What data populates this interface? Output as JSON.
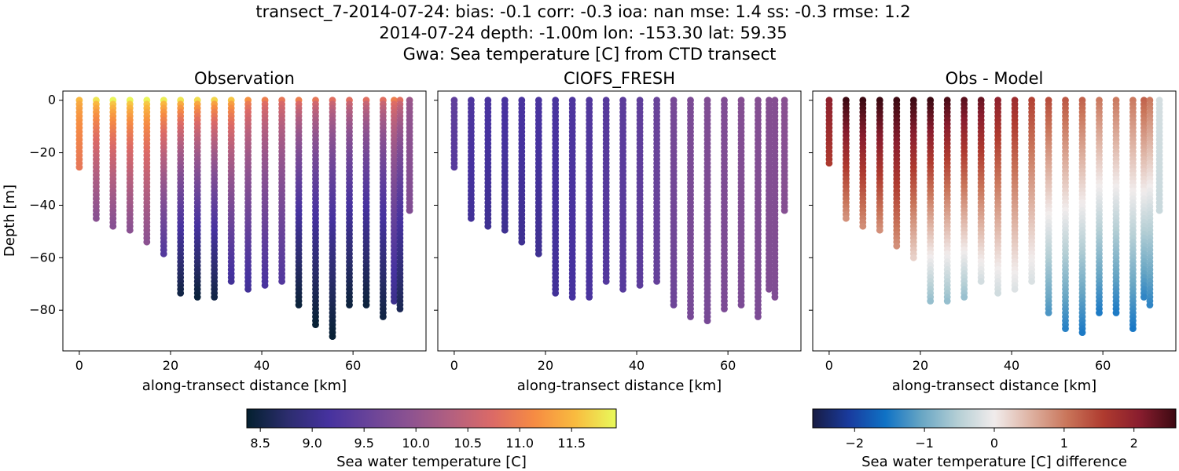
{
  "figure": {
    "title_lines": [
      "transect_7-2014-07-24: bias: -0.1  corr: -0.3  ioa: nan  mse: 1.4  ss: -0.3  rmse: 1.2",
      "2014-07-24 depth: -1.00m lon: -153.30 lat: 59.35",
      "Gwa: Sea temperature [C] from CTD transect"
    ]
  },
  "chart_data": [
    {
      "type": "scatter",
      "title": "Observation",
      "xlabel": "along-transect distance [km]",
      "ylabel": "Depth [m]",
      "xlim": [
        -3.6,
        76
      ],
      "ylim": [
        -95.5,
        3.5
      ],
      "xticks": [
        0,
        20,
        40,
        60
      ],
      "yticks": [
        0,
        -20,
        -40,
        -60,
        -80
      ],
      "colormap": "thermal",
      "stations": [
        {
          "x": 0.0,
          "depth_min": -26,
          "upper_temp": 11.5,
          "lower_temp": 10.9
        },
        {
          "x": 3.7,
          "depth_min": -45,
          "upper_temp": 11.8,
          "lower_temp": 9.9
        },
        {
          "x": 7.4,
          "depth_min": -49,
          "upper_temp": 11.9,
          "lower_temp": 9.85
        },
        {
          "x": 11.1,
          "depth_min": -50,
          "upper_temp": 11.9,
          "lower_temp": 9.9
        },
        {
          "x": 14.8,
          "depth_min": -55,
          "upper_temp": 11.9,
          "lower_temp": 9.9
        },
        {
          "x": 18.5,
          "depth_min": -59,
          "upper_temp": 11.85,
          "lower_temp": 9.3
        },
        {
          "x": 22.2,
          "depth_min": -74,
          "upper_temp": 11.8,
          "lower_temp": 8.5
        },
        {
          "x": 25.9,
          "depth_min": -75,
          "upper_temp": 11.75,
          "lower_temp": 8.45
        },
        {
          "x": 29.6,
          "depth_min": -76,
          "upper_temp": 11.7,
          "lower_temp": 8.5
        },
        {
          "x": 33.3,
          "depth_min": -69,
          "upper_temp": 11.6,
          "lower_temp": 9.1
        },
        {
          "x": 37.0,
          "depth_min": -72,
          "upper_temp": 11.2,
          "lower_temp": 9.1
        },
        {
          "x": 40.7,
          "depth_min": -71,
          "upper_temp": 11.0,
          "lower_temp": 9.2
        },
        {
          "x": 44.4,
          "depth_min": -69,
          "upper_temp": 10.9,
          "lower_temp": 9.3
        },
        {
          "x": 48.1,
          "depth_min": -78,
          "upper_temp": 11.0,
          "lower_temp": 8.45
        },
        {
          "x": 51.8,
          "depth_min": -86,
          "upper_temp": 10.9,
          "lower_temp": 8.4
        },
        {
          "x": 55.5,
          "depth_min": -91,
          "upper_temp": 10.8,
          "lower_temp": 8.4
        },
        {
          "x": 59.2,
          "depth_min": -79,
          "upper_temp": 10.8,
          "lower_temp": 8.45
        },
        {
          "x": 62.9,
          "depth_min": -79,
          "upper_temp": 10.8,
          "lower_temp": 8.45
        },
        {
          "x": 66.6,
          "depth_min": -83,
          "upper_temp": 10.8,
          "lower_temp": 8.5
        },
        {
          "x": 69.0,
          "depth_min": -77,
          "upper_temp": 11.0,
          "lower_temp": 9.0
        },
        {
          "x": 70.3,
          "depth_min": -80,
          "upper_temp": 10.8,
          "lower_temp": 8.6
        },
        {
          "x": 72.4,
          "depth_min": -43,
          "upper_temp": 10.1,
          "lower_temp": 9.8
        }
      ]
    },
    {
      "type": "scatter",
      "title": "CIOFS_FRESH",
      "xlabel": "along-transect distance [km]",
      "xlim": [
        -3.6,
        76
      ],
      "ylim": [
        -95.5,
        3.5
      ],
      "xticks": [
        0,
        20,
        40,
        60
      ],
      "colormap": "thermal",
      "stations": [
        {
          "x": 0.0,
          "depth_min": -26,
          "upper_temp": 9.45,
          "lower_temp": 9.35
        },
        {
          "x": 3.7,
          "depth_min": -45,
          "upper_temp": 9.25,
          "lower_temp": 9.1
        },
        {
          "x": 7.4,
          "depth_min": -49,
          "upper_temp": 9.2,
          "lower_temp": 9.05
        },
        {
          "x": 11.1,
          "depth_min": -50,
          "upper_temp": 9.2,
          "lower_temp": 9.05
        },
        {
          "x": 14.8,
          "depth_min": -55,
          "upper_temp": 9.2,
          "lower_temp": 9.05
        },
        {
          "x": 18.5,
          "depth_min": -59,
          "upper_temp": 9.2,
          "lower_temp": 9.05
        },
        {
          "x": 22.2,
          "depth_min": -74,
          "upper_temp": 9.2,
          "lower_temp": 9.1
        },
        {
          "x": 25.9,
          "depth_min": -75,
          "upper_temp": 9.25,
          "lower_temp": 9.15
        },
        {
          "x": 29.6,
          "depth_min": -76,
          "upper_temp": 9.3,
          "lower_temp": 9.2
        },
        {
          "x": 33.3,
          "depth_min": -69,
          "upper_temp": 9.35,
          "lower_temp": 9.3
        },
        {
          "x": 37.0,
          "depth_min": -72,
          "upper_temp": 9.4,
          "lower_temp": 9.35
        },
        {
          "x": 40.7,
          "depth_min": -71,
          "upper_temp": 9.45,
          "lower_temp": 9.4
        },
        {
          "x": 44.4,
          "depth_min": -69,
          "upper_temp": 9.55,
          "lower_temp": 9.5
        },
        {
          "x": 48.1,
          "depth_min": -78,
          "upper_temp": 9.7,
          "lower_temp": 9.6
        },
        {
          "x": 51.8,
          "depth_min": -83,
          "upper_temp": 9.75,
          "lower_temp": 9.7
        },
        {
          "x": 55.5,
          "depth_min": -85,
          "upper_temp": 9.8,
          "lower_temp": 9.7
        },
        {
          "x": 59.2,
          "depth_min": -80,
          "upper_temp": 9.8,
          "lower_temp": 9.75
        },
        {
          "x": 62.9,
          "depth_min": -79,
          "upper_temp": 9.85,
          "lower_temp": 9.75
        },
        {
          "x": 66.6,
          "depth_min": -83,
          "upper_temp": 9.85,
          "lower_temp": 9.75
        },
        {
          "x": 69.0,
          "depth_min": -73,
          "upper_temp": 9.85,
          "lower_temp": 9.8
        },
        {
          "x": 70.3,
          "depth_min": -76,
          "upper_temp": 9.85,
          "lower_temp": 9.8
        },
        {
          "x": 72.4,
          "depth_min": -43,
          "upper_temp": 9.9,
          "lower_temp": 9.85
        }
      ]
    },
    {
      "type": "scatter",
      "title": "Obs - Model",
      "xlabel": "along-transect distance [km]",
      "xlim": [
        -3.6,
        76
      ],
      "ylim": [
        -95.5,
        3.5
      ],
      "xticks": [
        0,
        20,
        40,
        60
      ],
      "colormap": "balance",
      "stations": [
        {
          "x": 0.0,
          "depth_min": -24,
          "upper_diff": 2.0,
          "lower_diff": 1.6
        },
        {
          "x": 3.7,
          "depth_min": -45,
          "upper_diff": 2.6,
          "lower_diff": 0.8
        },
        {
          "x": 7.4,
          "depth_min": -49,
          "upper_diff": 2.6,
          "lower_diff": 0.8
        },
        {
          "x": 11.1,
          "depth_min": -50,
          "upper_diff": 2.6,
          "lower_diff": 0.8
        },
        {
          "x": 14.8,
          "depth_min": -56,
          "upper_diff": 2.6,
          "lower_diff": 0.8
        },
        {
          "x": 18.5,
          "depth_min": -60,
          "upper_diff": 2.6,
          "lower_diff": 0.25
        },
        {
          "x": 22.2,
          "depth_min": -77,
          "upper_diff": 2.6,
          "lower_diff": -0.75
        },
        {
          "x": 25.9,
          "depth_min": -77,
          "upper_diff": 2.5,
          "lower_diff": -0.75
        },
        {
          "x": 29.6,
          "depth_min": -76,
          "upper_diff": 2.4,
          "lower_diff": -0.75
        },
        {
          "x": 33.3,
          "depth_min": -70,
          "upper_diff": 2.3,
          "lower_diff": -0.3
        },
        {
          "x": 37.0,
          "depth_min": -74,
          "upper_diff": 2.0,
          "lower_diff": -0.3
        },
        {
          "x": 40.7,
          "depth_min": -73,
          "upper_diff": 1.8,
          "lower_diff": -0.2
        },
        {
          "x": 44.4,
          "depth_min": -69,
          "upper_diff": 1.5,
          "lower_diff": -0.2
        },
        {
          "x": 48.1,
          "depth_min": -81,
          "upper_diff": 1.4,
          "lower_diff": -1.2
        },
        {
          "x": 51.8,
          "depth_min": -87,
          "upper_diff": 1.3,
          "lower_diff": -1.4
        },
        {
          "x": 55.5,
          "depth_min": -89,
          "upper_diff": 1.2,
          "lower_diff": -1.5
        },
        {
          "x": 59.2,
          "depth_min": -82,
          "upper_diff": 1.0,
          "lower_diff": -1.5
        },
        {
          "x": 62.9,
          "depth_min": -82,
          "upper_diff": 1.0,
          "lower_diff": -1.5
        },
        {
          "x": 66.6,
          "depth_min": -87,
          "upper_diff": 1.0,
          "lower_diff": -1.5
        },
        {
          "x": 69.0,
          "depth_min": -76,
          "upper_diff": 1.2,
          "lower_diff": -1.4
        },
        {
          "x": 70.3,
          "depth_min": -79,
          "upper_diff": 1.0,
          "lower_diff": -1.4
        },
        {
          "x": 72.4,
          "depth_min": -43,
          "upper_diff": -0.25,
          "lower_diff": -0.35
        }
      ]
    }
  ],
  "colorbars": [
    {
      "label": "Sea water temperature [C]",
      "range": [
        8.37,
        11.93
      ],
      "ticks": [
        "8.5",
        "9.0",
        "9.5",
        "10.0",
        "10.5",
        "11.0",
        "11.5"
      ],
      "colormap": "thermal"
    },
    {
      "label": "Sea water temperature [C] difference",
      "range": [
        -2.6,
        2.6
      ],
      "ticks": [
        "−2",
        "−1",
        "0",
        "1",
        "2"
      ],
      "colormap": "balance"
    }
  ],
  "colors": {
    "thermal": [
      "#04202f",
      "#2c2d6e",
      "#46329f",
      "#6a4499",
      "#8e5390",
      "#b4607f",
      "#dc6a66",
      "#f68b43",
      "#f9bb3f",
      "#e8fa5b"
    ],
    "balance": [
      "#181c43",
      "#193b9e",
      "#0f72c5",
      "#68a6c4",
      "#b5cfd5",
      "#f1ecec",
      "#deb2a2",
      "#c9755a",
      "#af3b2f",
      "#891d2e",
      "#3c0912"
    ]
  }
}
